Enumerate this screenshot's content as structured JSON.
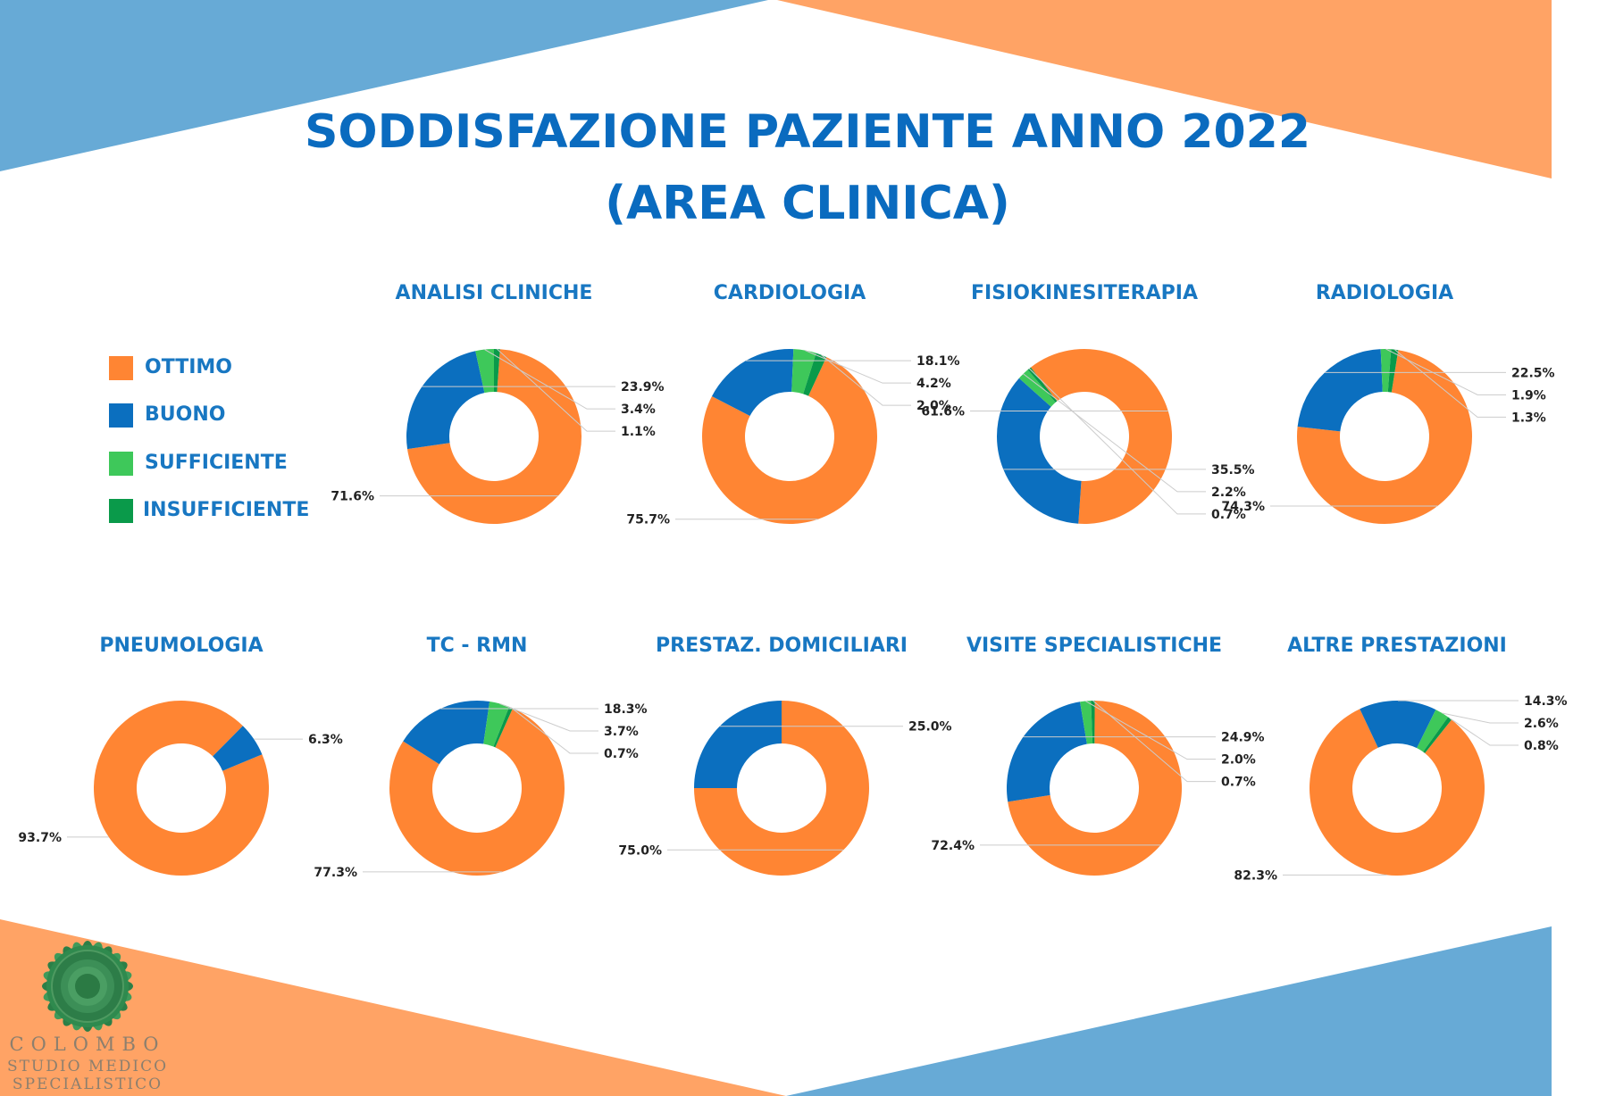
{
  "title": {
    "line1": "SODDISFAZIONE PAZIENTE ANNO 2022",
    "line2": "(AREA CLINICA)"
  },
  "colors": {
    "title": "#0a6bbf",
    "chart_title": "#1877c2",
    "background_blue": "#67aad6",
    "background_orange": "#ffa365",
    "label_text": "#222222",
    "leader_line": "#cccccc"
  },
  "legend": {
    "position": "left",
    "items": [
      {
        "label": "OTTIMO",
        "color": "#ff8533"
      },
      {
        "label": "BUONO",
        "color": "#0b6fbf"
      },
      {
        "label": "SUFFICIENTE",
        "color": "#3ec85a"
      },
      {
        "label": "INSUFFICIENTE",
        "color": "#0a9a4a"
      }
    ]
  },
  "chart_data": [
    {
      "type": "pie",
      "style": "donut",
      "title": "ANALISI CLINICHE",
      "categories": [
        "OTTIMO",
        "BUONO",
        "SUFFICIENTE",
        "INSUFFICIENTE"
      ],
      "values": [
        71.6,
        23.9,
        3.4,
        1.1
      ],
      "labels": [
        "71.6%",
        "23.9%",
        "3.4%",
        "1.1%"
      ]
    },
    {
      "type": "pie",
      "style": "donut",
      "title": "CARDIOLOGIA",
      "categories": [
        "OTTIMO",
        "BUONO",
        "SUFFICIENTE",
        "INSUFFICIENTE"
      ],
      "values": [
        75.7,
        18.1,
        4.2,
        2.0
      ],
      "labels": [
        "75.7%",
        "18.1%",
        "4.2%",
        "2.0%"
      ]
    },
    {
      "type": "pie",
      "style": "donut",
      "title": "FISIOKINESITERAPIA",
      "categories": [
        "OTTIMO",
        "BUONO",
        "SUFFICIENTE",
        "INSUFFICIENTE"
      ],
      "values": [
        61.6,
        35.5,
        2.2,
        0.7
      ],
      "labels": [
        "61.6%",
        "35.5%",
        "2.2%",
        "0.7%"
      ]
    },
    {
      "type": "pie",
      "style": "donut",
      "title": "RADIOLOGIA",
      "categories": [
        "OTTIMO",
        "BUONO",
        "SUFFICIENTE",
        "INSUFFICIENTE"
      ],
      "values": [
        74.3,
        22.5,
        1.9,
        1.3
      ],
      "labels": [
        "74.3%",
        "22.5%",
        "1.9%",
        "1.3%"
      ]
    },
    {
      "type": "pie",
      "style": "donut",
      "title": "PNEUMOLOGIA",
      "categories": [
        "OTTIMO",
        "BUONO"
      ],
      "values": [
        93.7,
        6.3
      ],
      "labels": [
        "93.7%",
        "6.3%"
      ]
    },
    {
      "type": "pie",
      "style": "donut",
      "title": "TC - RMN",
      "categories": [
        "OTTIMO",
        "BUONO",
        "SUFFICIENTE",
        "INSUFFICIENTE"
      ],
      "values": [
        77.3,
        18.3,
        3.7,
        0.7
      ],
      "labels": [
        "77.3%",
        "18.3%",
        "3.7%",
        "0.7%"
      ]
    },
    {
      "type": "pie",
      "style": "donut",
      "title": "PRESTAZ. DOMICILIARI",
      "categories": [
        "OTTIMO",
        "BUONO"
      ],
      "values": [
        75.0,
        25.0
      ],
      "labels": [
        "75.0%",
        "25.0%"
      ]
    },
    {
      "type": "pie",
      "style": "donut",
      "title": "VISITE SPECIALISTICHE",
      "categories": [
        "OTTIMO",
        "BUONO",
        "SUFFICIENTE",
        "INSUFFICIENTE"
      ],
      "values": [
        72.4,
        24.9,
        2.0,
        0.7
      ],
      "labels": [
        "72.4%",
        "24.9%",
        "2.0%",
        "0.7%"
      ]
    },
    {
      "type": "pie",
      "style": "donut",
      "title": "ALTRE PRESTAZIONI",
      "categories": [
        "OTTIMO",
        "BUONO",
        "SUFFICIENTE",
        "INSUFFICIENTE"
      ],
      "values": [
        82.3,
        14.3,
        2.6,
        0.8
      ],
      "labels": [
        "82.3%",
        "14.3%",
        "2.6%",
        "0.8%"
      ]
    }
  ],
  "logo": {
    "line1": "COLOMBO",
    "line2": "STUDIO MEDICO",
    "line3": "SPECIALISTICO"
  }
}
